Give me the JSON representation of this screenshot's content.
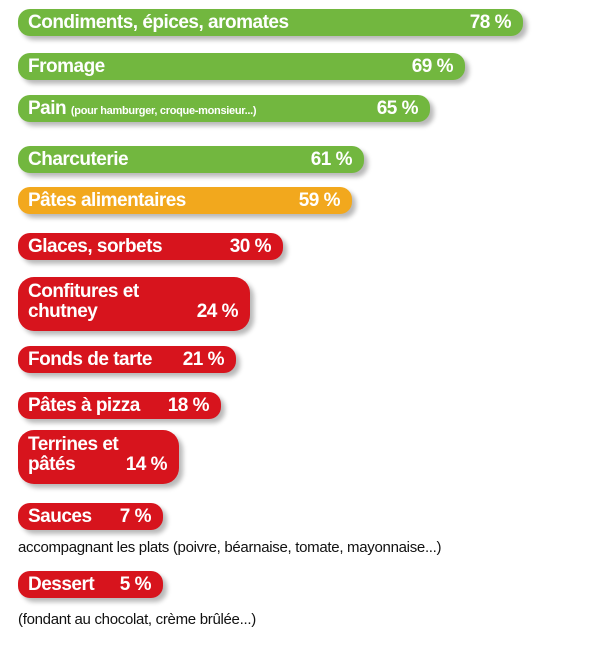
{
  "colors": {
    "green": "#72b73f",
    "orange": "#f2a81d",
    "red": "#d7141d",
    "text": "#111111"
  },
  "chart_data": {
    "type": "bar",
    "orientation": "horizontal",
    "unit": "%",
    "items": [
      {
        "label": "Condiments, épices, aromates",
        "sub": "",
        "value": 78,
        "value_label": "78 %",
        "color": "green"
      },
      {
        "label": "Fromage",
        "sub": "",
        "value": 69,
        "value_label": "69 %",
        "color": "green"
      },
      {
        "label": "Pain",
        "sub": "(pour hamburger, croque-monsieur...)",
        "value": 65,
        "value_label": "65 %",
        "color": "green"
      },
      {
        "label": "Charcuterie",
        "sub": "",
        "value": 61,
        "value_label": "61 %",
        "color": "green"
      },
      {
        "label": "Pâtes alimentaires",
        "sub": "",
        "value": 59,
        "value_label": "59 %",
        "color": "orange"
      },
      {
        "label": "Glaces, sorbets",
        "sub": "",
        "value": 30,
        "value_label": "30 %",
        "color": "red"
      },
      {
        "label": "Confitures et\nchutney",
        "sub": "",
        "value": 24,
        "value_label": "24 %",
        "color": "red"
      },
      {
        "label": "Fonds de tarte",
        "sub": "",
        "value": 21,
        "value_label": "21 %",
        "color": "red"
      },
      {
        "label": "Pâtes à pizza",
        "sub": "",
        "value": 18,
        "value_label": "18 %",
        "color": "red"
      },
      {
        "label": "Terrines et\npâtés",
        "sub": "",
        "value": 14,
        "value_label": "14 %",
        "color": "red"
      },
      {
        "label": "Sauces",
        "sub": "",
        "value": 7,
        "value_label": "7 %",
        "color": "red",
        "note": "accompagnant les plats (poivre, béarnaise, tomate, mayonnaise...)"
      },
      {
        "label": "Dessert",
        "sub": "",
        "value": 5,
        "value_label": "5 %",
        "color": "red",
        "note": "(fondant au chocolat, crème brûlée...)"
      }
    ]
  }
}
